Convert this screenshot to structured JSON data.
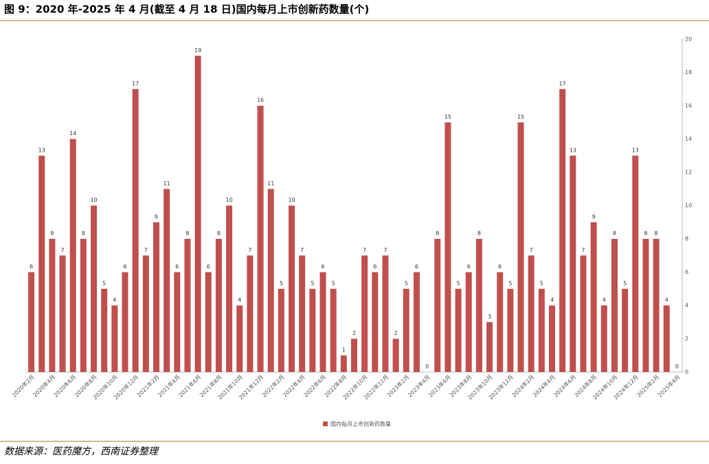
{
  "chart_data": {
    "type": "bar",
    "title": "图 9：2020 年-2025 年 4 月(截至 4 月 18 日)国内每月上市创新药数量(个)",
    "source": "数据来源：医药魔方，西南证券整理",
    "categories": [
      "2020年2月",
      null,
      "2020年4月",
      null,
      "2020年6月",
      null,
      "2020年8月",
      null,
      "2020年10月",
      null,
      "2020年12月",
      null,
      "2021年2月",
      null,
      "2021年4月",
      null,
      "2021年6月",
      null,
      "2021年8月",
      null,
      "2021年10月",
      null,
      "2021年12月",
      null,
      "2022年2月",
      null,
      "2022年4月",
      null,
      "2022年6月",
      null,
      "2022年8月",
      null,
      "2022年10月",
      null,
      "2022年12月",
      null,
      "2023年2月",
      null,
      "2023年4月",
      null,
      "2023年6月",
      null,
      "2023年8月",
      null,
      "2023年10月",
      null,
      "2023年12月",
      null,
      "2024年2月",
      null,
      "2024年4月",
      null,
      "2024年6月",
      null,
      "2024年8月",
      null,
      "2024年10月",
      null,
      "2024年12月",
      null,
      "2025年2月",
      null,
      "2025年4月"
    ],
    "series": [
      {
        "name": "国内每月上市创新药数量",
        "color": "#c0504d",
        "values": [
          6,
          13,
          8,
          7,
          14,
          8,
          10,
          5,
          4,
          6,
          17,
          7,
          9,
          11,
          6,
          8,
          19,
          6,
          8,
          10,
          4,
          7,
          16,
          11,
          5,
          10,
          7,
          5,
          6,
          5,
          1,
          2,
          7,
          6,
          7,
          2,
          5,
          6,
          0,
          8,
          15,
          5,
          6,
          8,
          3,
          6,
          5,
          15,
          7,
          5,
          4,
          17,
          13,
          7,
          9,
          4,
          8,
          5,
          13,
          8,
          8,
          4,
          0
        ]
      }
    ],
    "ylim": [
      0,
      20
    ],
    "yticks": [
      0,
      2,
      4,
      6,
      8,
      10,
      12,
      14,
      16,
      18,
      20
    ],
    "y_axis_side": "right"
  }
}
